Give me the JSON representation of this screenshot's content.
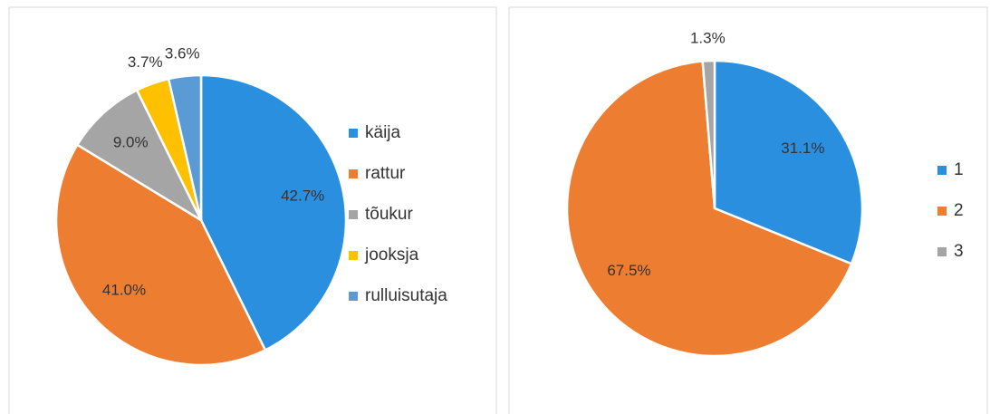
{
  "chart_data": [
    {
      "type": "pie",
      "categories": [
        "käija",
        "rattur",
        "tõukur",
        "jooksja",
        "rulluisutaja"
      ],
      "values": [
        42.7,
        41.0,
        9.0,
        3.7,
        3.6
      ],
      "value_labels": [
        "42.7%",
        "41.0%",
        "9.0%",
        "3.7%",
        "3.6%"
      ],
      "colors": [
        "#2b8fe0",
        "#ed7d31",
        "#a5a5a5",
        "#ffc000",
        "#5b9bd5"
      ],
      "legend": "right"
    },
    {
      "type": "pie",
      "categories": [
        "1",
        "2",
        "3"
      ],
      "values": [
        31.1,
        67.5,
        1.3
      ],
      "value_labels": [
        "31.1%",
        "67.5%",
        "1.3%"
      ],
      "colors": [
        "#2b8fe0",
        "#ed7d31",
        "#a5a5a5"
      ],
      "legend": "right"
    }
  ]
}
